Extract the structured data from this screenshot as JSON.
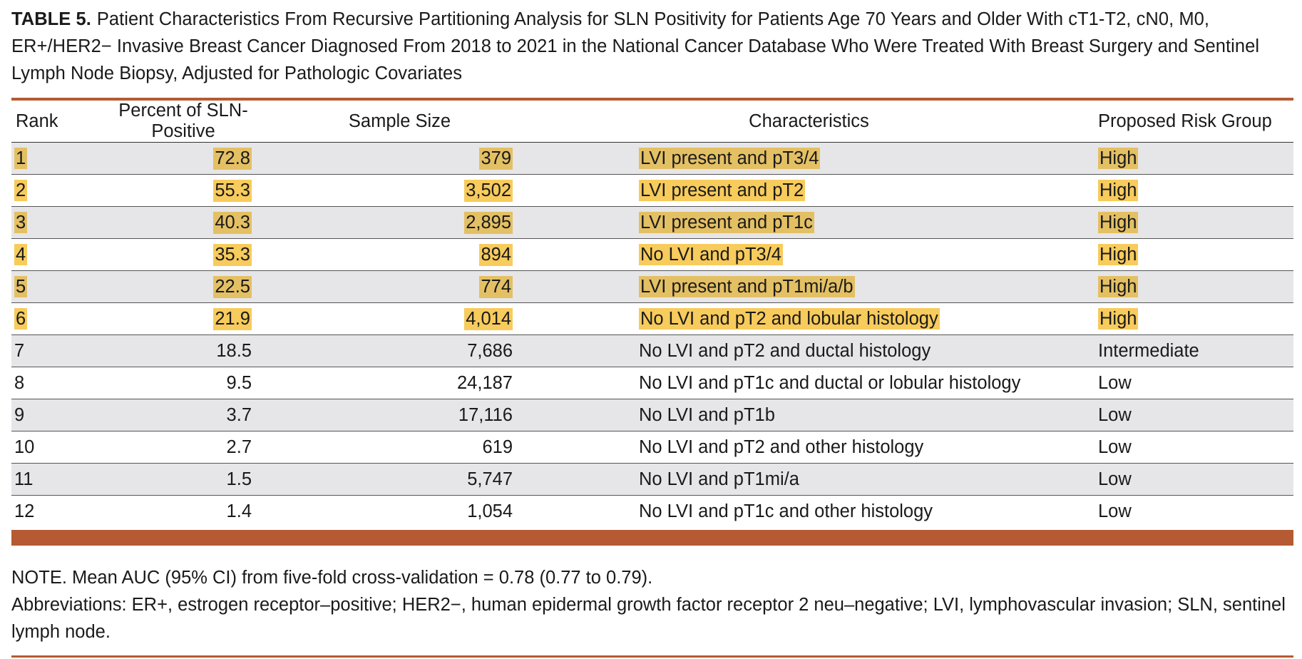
{
  "caption": {
    "label": "TABLE 5.",
    "text": "Patient Characteristics From Recursive Partitioning Analysis for SLN Positivity for Patients Age 70 Years and Older With cT1-T2, cN0, M0, ER+/HER2− Invasive Breast Cancer Diagnosed From 2018 to 2021 in the National Cancer Database Who Were Treated With Breast Surgery and Sentinel Lymph Node Biopsy, Adjusted for Pathologic Covariates"
  },
  "table": {
    "headers": {
      "rank": "Rank",
      "percent": "Percent of SLN-Positive",
      "sample_size": "Sample Size",
      "characteristics": "Characteristics",
      "risk_group": "Proposed Risk Group"
    },
    "rows": [
      {
        "rank": "1",
        "percent": "72.8",
        "sample_size": "379",
        "characteristics": "LVI present and pT3/4",
        "risk_group": "High"
      },
      {
        "rank": "2",
        "percent": "55.3",
        "sample_size": "3,502",
        "characteristics": "LVI present and pT2",
        "risk_group": "High"
      },
      {
        "rank": "3",
        "percent": "40.3",
        "sample_size": "2,895",
        "characteristics": "LVI present and pT1c",
        "risk_group": "High"
      },
      {
        "rank": "4",
        "percent": "35.3",
        "sample_size": "894",
        "characteristics": "No LVI and pT3/4",
        "risk_group": "High"
      },
      {
        "rank": "5",
        "percent": "22.5",
        "sample_size": "774",
        "characteristics": "LVI present and pT1mi/a/b",
        "risk_group": "High"
      },
      {
        "rank": "6",
        "percent": "21.9",
        "sample_size": "4,014",
        "characteristics": "No LVI and pT2 and lobular histology",
        "risk_group": "High"
      },
      {
        "rank": "7",
        "percent": "18.5",
        "sample_size": "7,686",
        "characteristics": "No LVI and pT2 and ductal histology",
        "risk_group": "Intermediate"
      },
      {
        "rank": "8",
        "percent": "9.5",
        "sample_size": "24,187",
        "characteristics": "No LVI and pT1c and ductal or lobular histology",
        "risk_group": "Low"
      },
      {
        "rank": "9",
        "percent": "3.7",
        "sample_size": "17,116",
        "characteristics": "No LVI and pT1b",
        "risk_group": "Low"
      },
      {
        "rank": "10",
        "percent": "2.7",
        "sample_size": "619",
        "characteristics": "No LVI and pT2 and other histology",
        "risk_group": "Low"
      },
      {
        "rank": "11",
        "percent": "1.5",
        "sample_size": "5,747",
        "characteristics": "No LVI and pT1mi/a",
        "risk_group": "Low"
      },
      {
        "rank": "12",
        "percent": "1.4",
        "sample_size": "1,054",
        "characteristics": "No LVI and pT1c and other histology",
        "risk_group": "Low"
      }
    ]
  },
  "notes": {
    "note": "NOTE. Mean AUC (95% CI) from five-fold cross-validation = 0.78 (0.77 to 0.79).",
    "abbreviations": "Abbreviations: ER+, estrogen receptor–positive; HER2−, human epidermal growth factor receptor 2 neu–negative; LVI, lymphovascular invasion; SLN, sentinel lymph node."
  },
  "colors": {
    "rule": "#b55a33",
    "highlight": "#f7cb5c",
    "row_shade": "#e6e6e8"
  }
}
